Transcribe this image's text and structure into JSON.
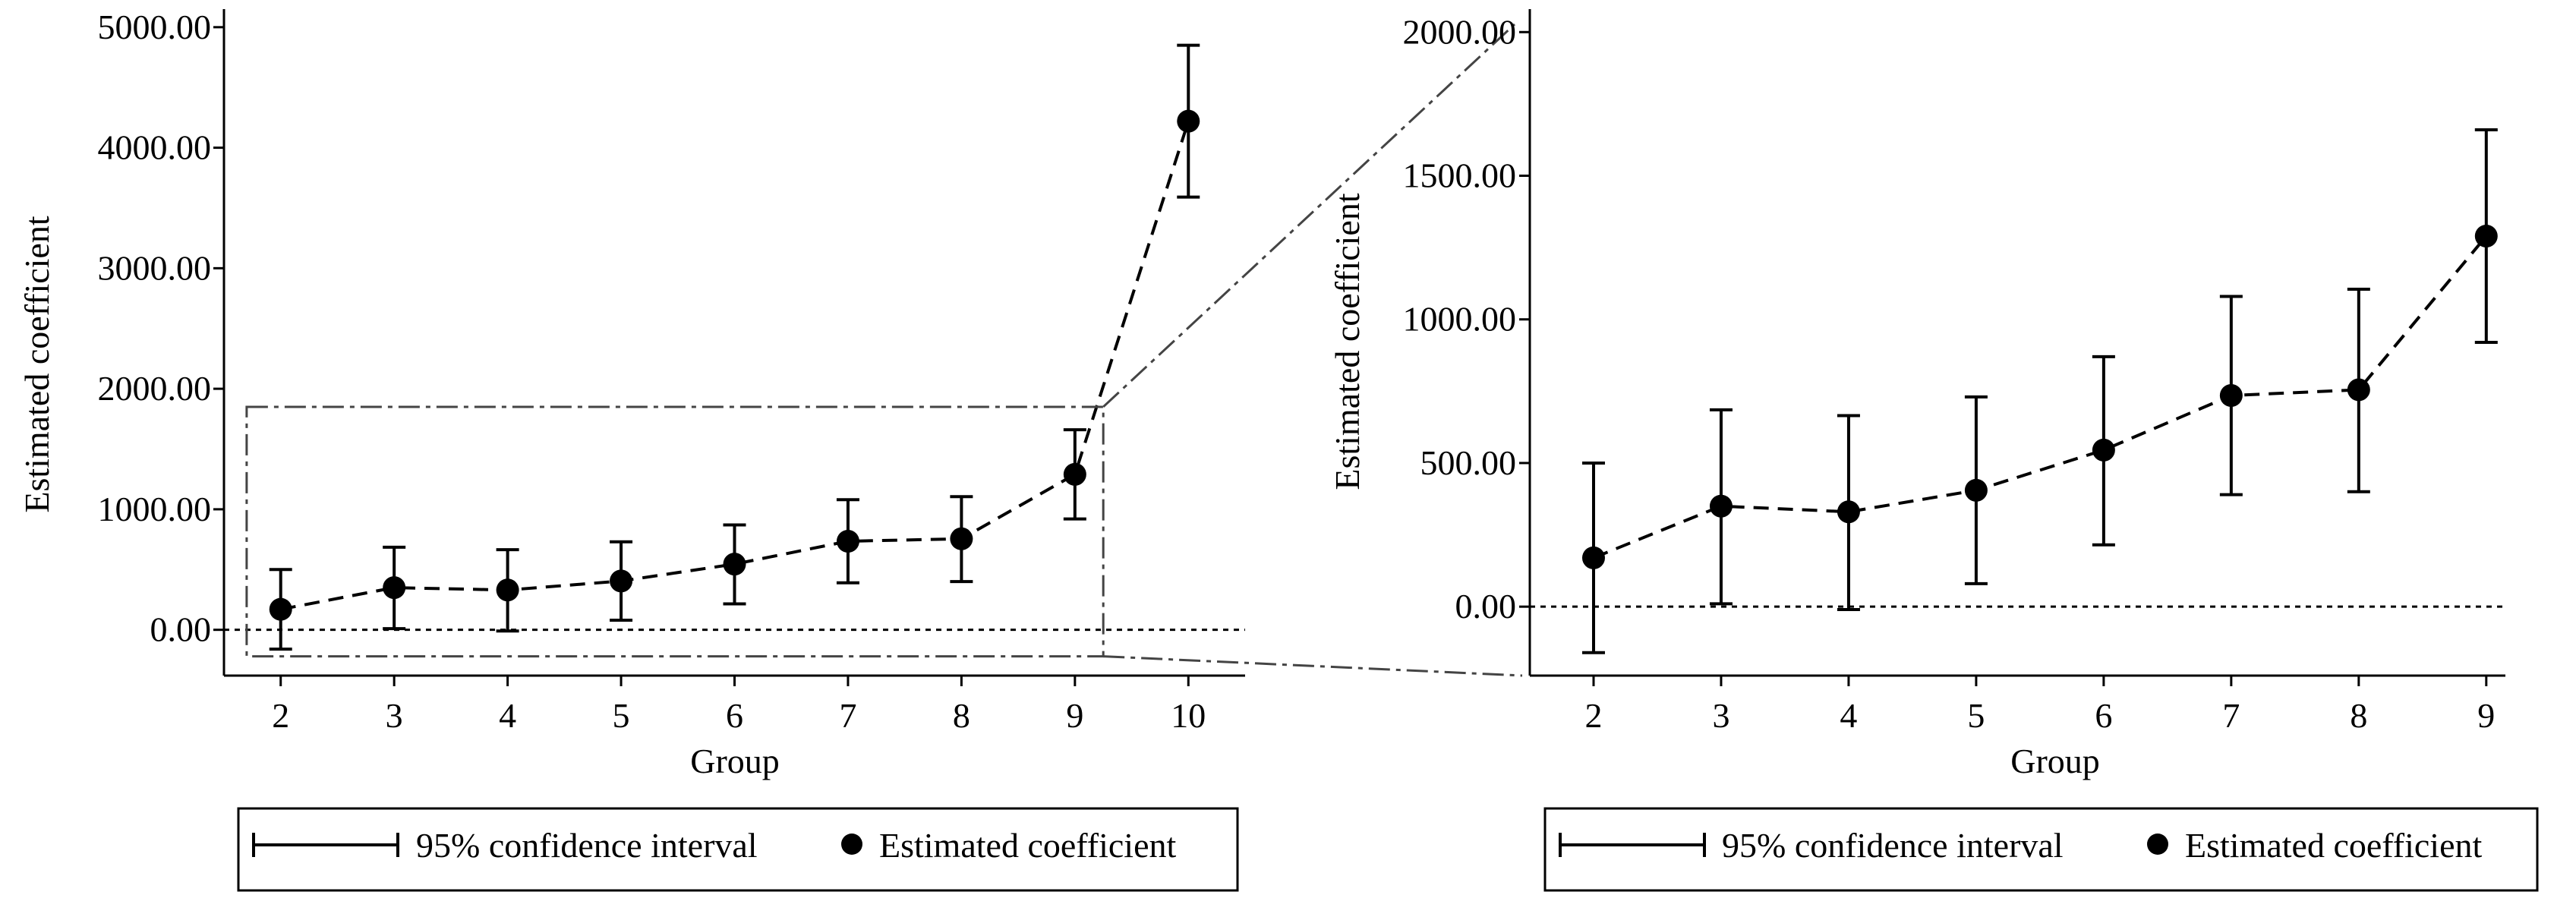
{
  "chart_data": [
    {
      "id": "left",
      "type": "line",
      "xlabel": "Group",
      "ylabel": "Estimated coefficient",
      "x": [
        2,
        3,
        4,
        5,
        6,
        7,
        8,
        9,
        10
      ],
      "y": [
        170,
        350,
        330,
        405,
        545,
        735,
        755,
        1290,
        4220
      ],
      "ci_low": [
        -160,
        10,
        -10,
        80,
        215,
        390,
        400,
        920,
        3590
      ],
      "ci_high": [
        500,
        685,
        665,
        730,
        870,
        1080,
        1105,
        1660,
        4850
      ],
      "xlim": [
        1.5,
        10.5
      ],
      "ylim": [
        -380,
        5150
      ],
      "yticks": [
        0,
        1000,
        2000,
        3000,
        4000,
        5000
      ],
      "ytick_labels": [
        "0.00",
        "1000.00",
        "2000.00",
        "3000.00",
        "4000.00",
        "5000.00"
      ],
      "xtick_labels": [
        "2",
        "3",
        "4",
        "5",
        "6",
        "7",
        "8",
        "9",
        "10"
      ],
      "reference_line": 0,
      "zoom_box": {
        "x_range": [
          1.7,
          9.25
        ],
        "y_range": [
          -220,
          1850
        ]
      },
      "legend": [
        "95% confidence interval",
        "Estimated coefficient"
      ]
    },
    {
      "id": "right",
      "type": "line",
      "xlabel": "Group",
      "ylabel": "Estimated coefficient",
      "x": [
        2,
        3,
        4,
        5,
        6,
        7,
        8,
        9
      ],
      "y": [
        170,
        350,
        330,
        405,
        545,
        735,
        755,
        1290
      ],
      "ci_low": [
        -160,
        10,
        -10,
        80,
        215,
        390,
        400,
        920
      ],
      "ci_high": [
        500,
        685,
        665,
        730,
        870,
        1080,
        1105,
        1660
      ],
      "xlim": [
        1.5,
        9.15
      ],
      "ylim": [
        -240,
        2080
      ],
      "yticks": [
        0,
        500,
        1000,
        1500,
        2000
      ],
      "ytick_labels": [
        "0.00",
        "500.00",
        "1000.00",
        "1500.00",
        "2000.00"
      ],
      "xtick_labels": [
        "2",
        "3",
        "4",
        "5",
        "6",
        "7",
        "8",
        "9"
      ],
      "reference_line": 0,
      "legend": [
        "95% confidence interval",
        "Estimated coefficient"
      ]
    }
  ]
}
